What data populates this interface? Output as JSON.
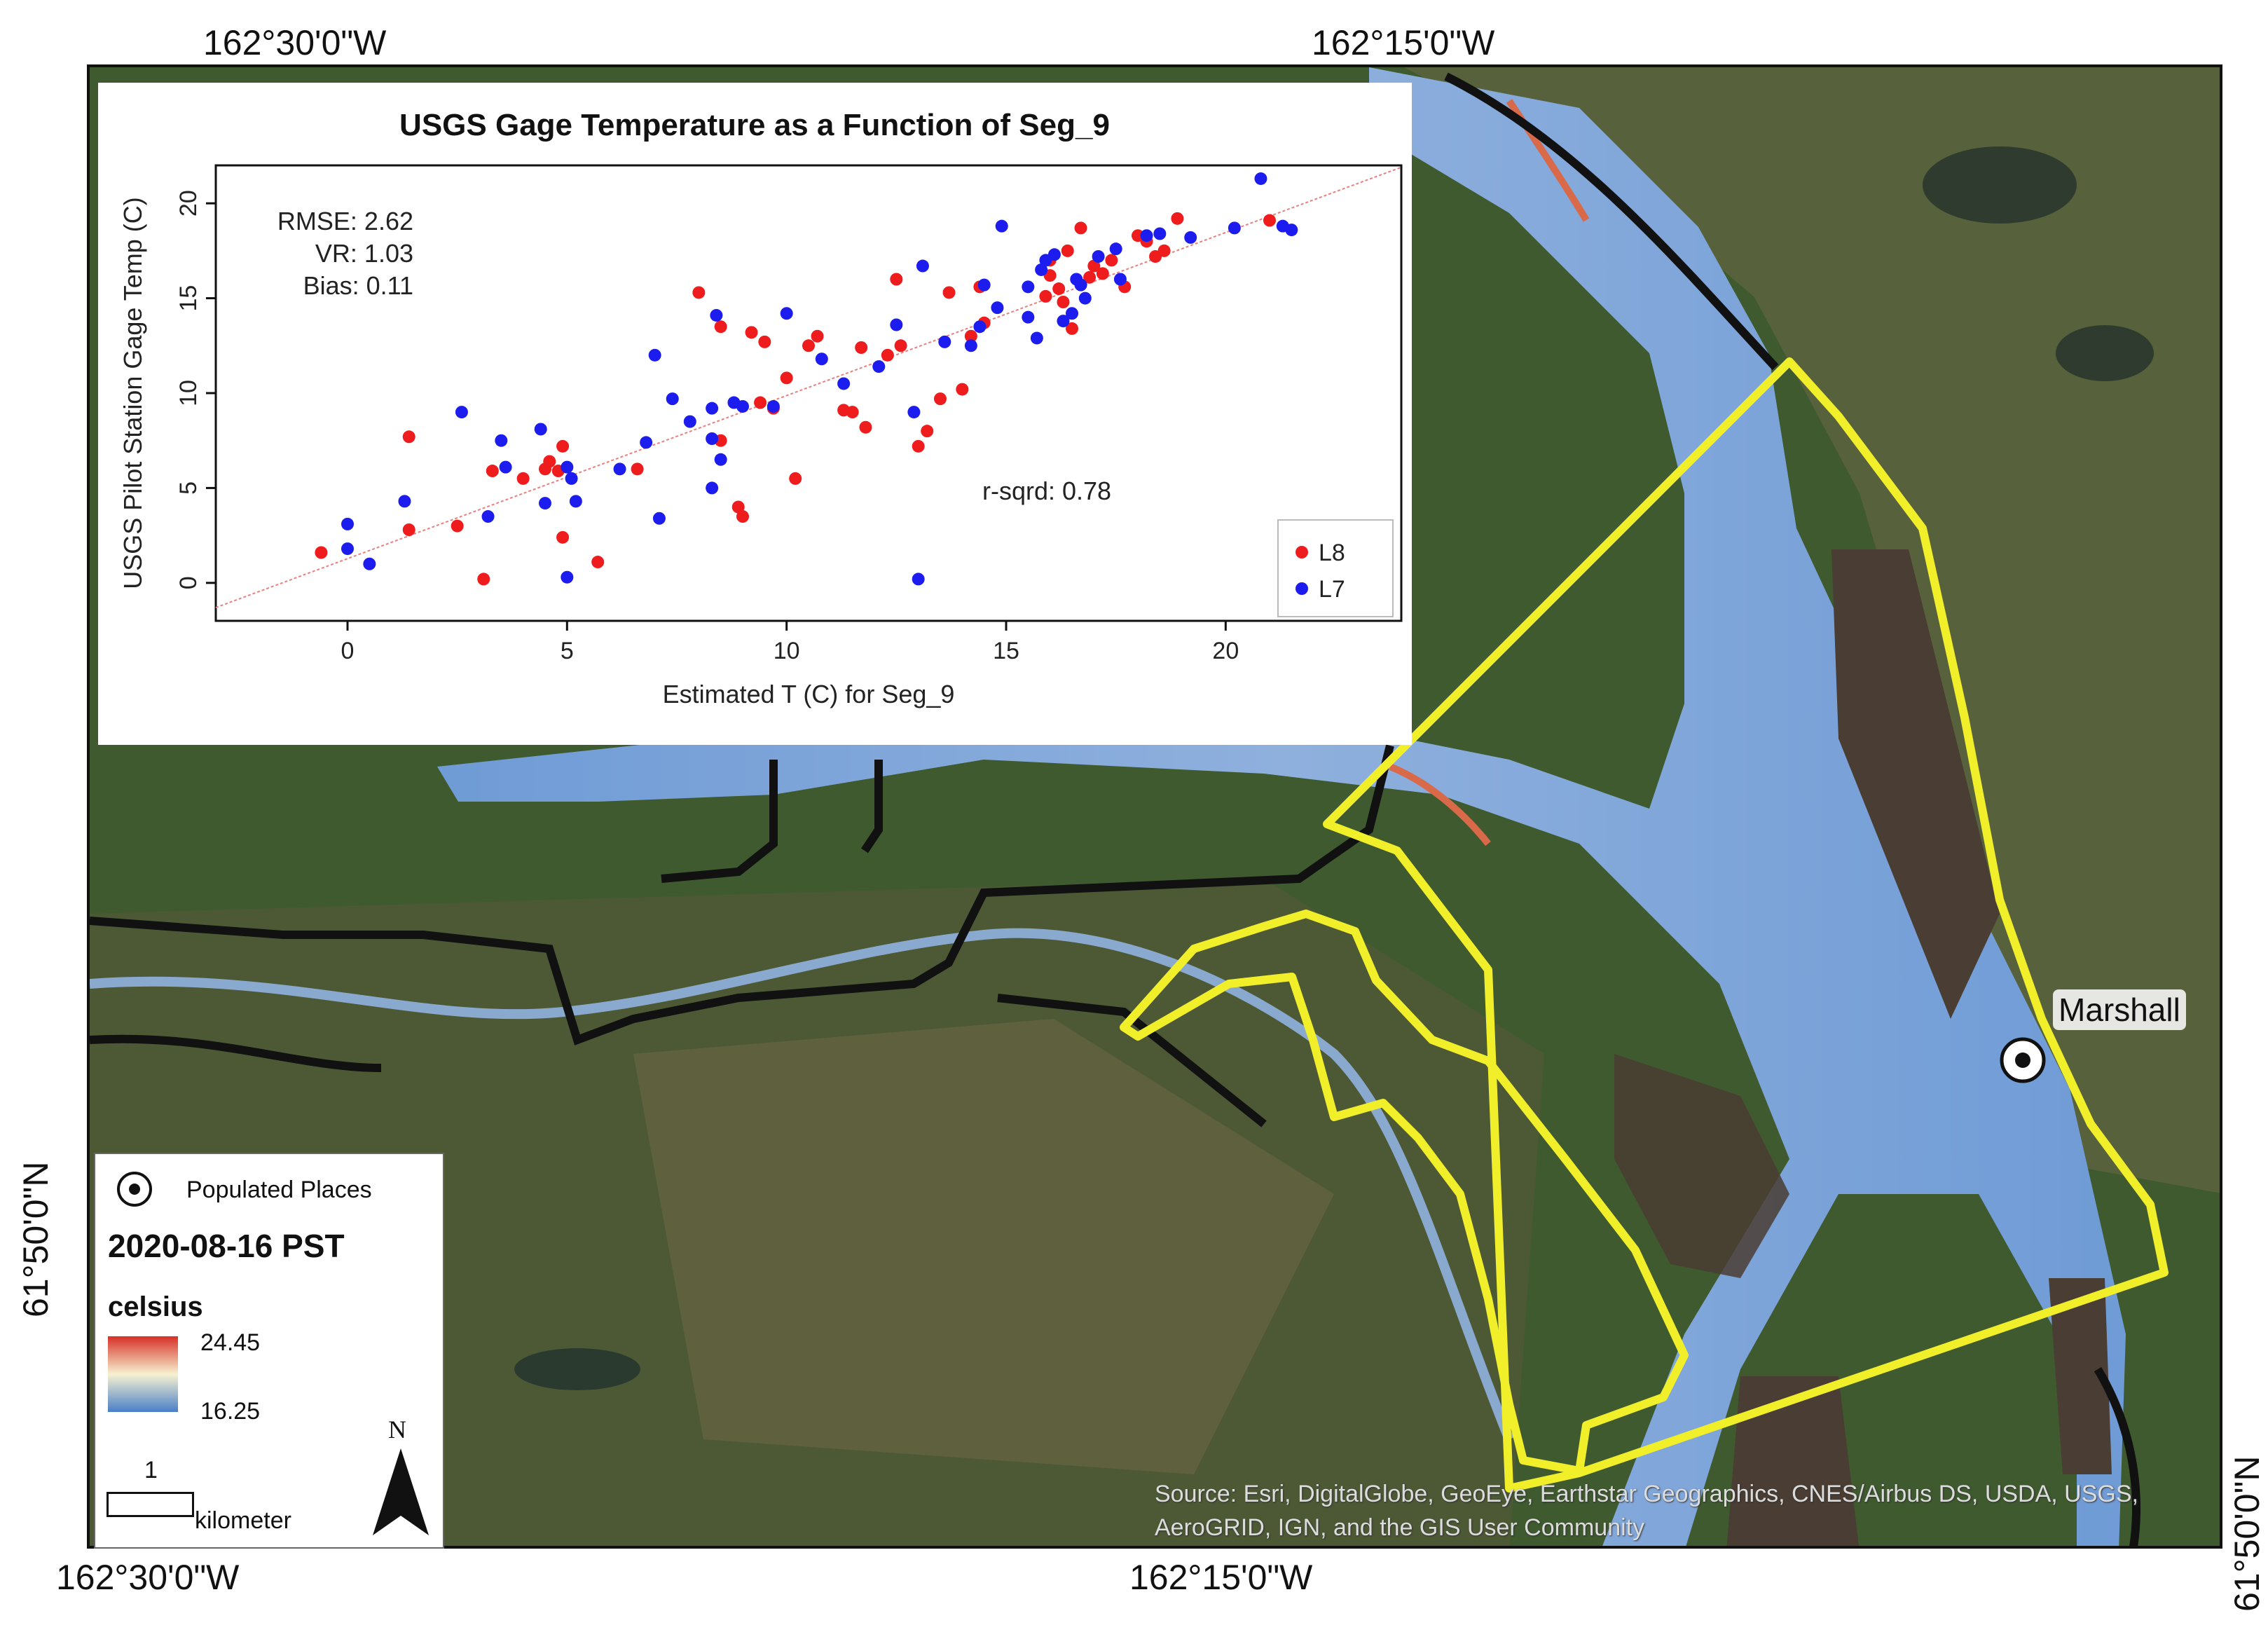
{
  "coords": {
    "top_left": "162°30'0\"W",
    "top_right": "162°15'0\"W",
    "bottom_left": "162°30'0\"W",
    "bottom_right": "162°15'0\"W",
    "left_lat": "61°50'0\"N",
    "right_lat": "61°50'0\"N"
  },
  "place": {
    "name": "Marshall"
  },
  "source": "Source: Esri, DigitalGlobe, GeoEye, Earthstar Geographics, CNES/Airbus DS, USDA, USGS, AeroGRID, IGN, and the GIS User Community",
  "legend": {
    "populated_places": "Populated Places",
    "date": "2020-08-16 PST",
    "units": "celsius",
    "max": "24.45",
    "min": "16.25",
    "scale_value": "1",
    "scale_unit": "kilometer",
    "north": "N",
    "colors": {
      "high": "#d73027",
      "mid": "#f7f2d0",
      "low": "#4a7fc8"
    }
  },
  "chart_data": {
    "type": "scatter",
    "title": "USGS Gage Temperature as a Function of Seg_9",
    "xlabel": "Estimated T (C) for Seg_9",
    "ylabel": "USGS Pilot Station Gage Temp (C)",
    "xlim": [
      -3,
      24
    ],
    "ylim": [
      -2,
      22
    ],
    "xticks": [
      0,
      5,
      10,
      15,
      20
    ],
    "yticks": [
      0,
      5,
      10,
      15,
      20
    ],
    "stats": {
      "rmse": "RMSE: 2.62",
      "vr": "VR: 1.03",
      "bias": "Bias: 0.11",
      "rsq": "r-sqrd: 0.78"
    },
    "fit_line": {
      "x": [
        -3,
        24
      ],
      "y": [
        -1.3,
        21.9
      ],
      "color": "#e88080"
    },
    "legend_position": "bottom-right",
    "series": [
      {
        "name": "L8",
        "color": "#ee1c1c",
        "points": [
          [
            -0.6,
            1.6
          ],
          [
            1.4,
            7.7
          ],
          [
            1.4,
            2.8
          ],
          [
            2.5,
            3
          ],
          [
            3.1,
            0.2
          ],
          [
            3.3,
            5.9
          ],
          [
            4,
            5.5
          ],
          [
            4.5,
            6
          ],
          [
            4.6,
            6.4
          ],
          [
            4.8,
            5.9
          ],
          [
            4.9,
            7.2
          ],
          [
            4.9,
            2.4
          ],
          [
            5.7,
            1.1
          ],
          [
            6.6,
            6
          ],
          [
            8,
            15.3
          ],
          [
            8.5,
            7.5
          ],
          [
            8.5,
            13.5
          ],
          [
            8.9,
            4
          ],
          [
            9,
            3.5
          ],
          [
            9.2,
            13.2
          ],
          [
            9.4,
            9.5
          ],
          [
            9.5,
            12.7
          ],
          [
            9.7,
            9.2
          ],
          [
            10,
            10.8
          ],
          [
            10.2,
            5.5
          ],
          [
            10.5,
            12.5
          ],
          [
            10.7,
            13
          ],
          [
            11.3,
            9.1
          ],
          [
            11.5,
            9
          ],
          [
            11.7,
            12.4
          ],
          [
            11.8,
            8.2
          ],
          [
            12.3,
            12
          ],
          [
            12.5,
            16
          ],
          [
            12.6,
            12.5
          ],
          [
            13,
            7.2
          ],
          [
            13.2,
            8
          ],
          [
            13.5,
            9.7
          ],
          [
            13.7,
            15.3
          ],
          [
            14,
            10.2
          ],
          [
            14.2,
            13
          ],
          [
            14.4,
            15.6
          ],
          [
            14.5,
            13.7
          ],
          [
            15.9,
            15.1
          ],
          [
            16,
            16.2
          ],
          [
            16,
            17
          ],
          [
            16.2,
            15.5
          ],
          [
            16.3,
            14.8
          ],
          [
            16.4,
            17.5
          ],
          [
            16.5,
            13.4
          ],
          [
            16.7,
            18.7
          ],
          [
            16.9,
            16.1
          ],
          [
            17,
            16.7
          ],
          [
            17.2,
            16.3
          ],
          [
            17.4,
            17
          ],
          [
            17.7,
            15.6
          ],
          [
            18,
            18.3
          ],
          [
            18.2,
            18
          ],
          [
            18.4,
            17.2
          ],
          [
            18.6,
            17.5
          ],
          [
            18.9,
            19.2
          ],
          [
            21,
            19.1
          ]
        ]
      },
      {
        "name": "L7",
        "color": "#1c1cee",
        "points": [
          [
            0,
            3.1
          ],
          [
            0,
            1.8
          ],
          [
            0.5,
            1
          ],
          [
            1.3,
            4.3
          ],
          [
            2.6,
            9
          ],
          [
            3.2,
            3.5
          ],
          [
            3.5,
            7.5
          ],
          [
            3.6,
            6.1
          ],
          [
            4.4,
            8.1
          ],
          [
            4.5,
            4.2
          ],
          [
            5,
            6.1
          ],
          [
            5,
            0.3
          ],
          [
            5.2,
            4.3
          ],
          [
            5.1,
            5.5
          ],
          [
            6.2,
            6
          ],
          [
            6.8,
            7.4
          ],
          [
            7,
            12
          ],
          [
            7.1,
            3.4
          ],
          [
            7.4,
            9.7
          ],
          [
            7.8,
            8.5
          ],
          [
            8.3,
            7.6
          ],
          [
            8.3,
            9.2
          ],
          [
            8.3,
            5
          ],
          [
            8.4,
            14.1
          ],
          [
            8.5,
            6.5
          ],
          [
            8.8,
            9.5
          ],
          [
            9,
            9.3
          ],
          [
            9.7,
            9.3
          ],
          [
            10,
            14.2
          ],
          [
            10.8,
            11.8
          ],
          [
            11.3,
            10.5
          ],
          [
            12.1,
            11.4
          ],
          [
            12.5,
            13.6
          ],
          [
            12.9,
            9
          ],
          [
            13,
            0.2
          ],
          [
            13.1,
            16.7
          ],
          [
            13.6,
            12.7
          ],
          [
            14.2,
            12.5
          ],
          [
            14.4,
            13.5
          ],
          [
            14.5,
            15.7
          ],
          [
            14.9,
            18.8
          ],
          [
            14.8,
            14.5
          ],
          [
            15.5,
            14
          ],
          [
            15.5,
            15.6
          ],
          [
            15.7,
            12.9
          ],
          [
            15.8,
            16.5
          ],
          [
            15.9,
            17
          ],
          [
            16.1,
            17.3
          ],
          [
            16.3,
            13.8
          ],
          [
            16.5,
            14.2
          ],
          [
            16.6,
            16
          ],
          [
            16.7,
            15.7
          ],
          [
            16.8,
            15
          ],
          [
            17.1,
            17.2
          ],
          [
            17.5,
            17.6
          ],
          [
            17.6,
            16
          ],
          [
            18.2,
            18.3
          ],
          [
            18.5,
            18.4
          ],
          [
            19.2,
            18.2
          ],
          [
            20.2,
            18.7
          ],
          [
            20.8,
            21.3
          ],
          [
            21.3,
            18.8
          ],
          [
            21.5,
            18.6
          ]
        ]
      }
    ]
  }
}
